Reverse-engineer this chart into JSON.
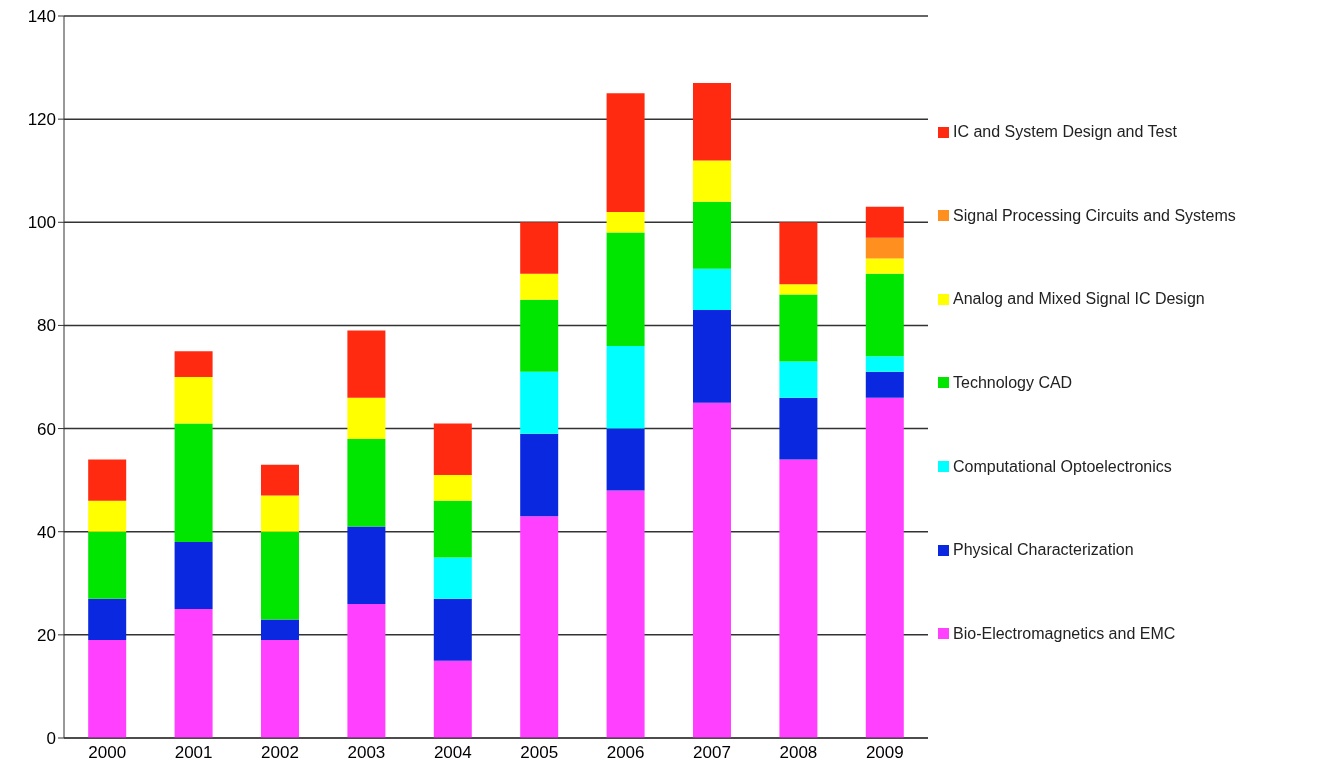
{
  "chart_data": {
    "type": "bar",
    "stacked": true,
    "categories": [
      "2000",
      "2001",
      "2002",
      "2003",
      "2004",
      "2005",
      "2006",
      "2007",
      "2008",
      "2009"
    ],
    "series": [
      {
        "name": "Bio-Electromagnetics and EMC",
        "color": "#ff40ff",
        "values": [
          19,
          25,
          19,
          26,
          15,
          43,
          48,
          65,
          54,
          66
        ]
      },
      {
        "name": "Physical Characterization",
        "color": "#0a28e0",
        "values": [
          8,
          13,
          4,
          15,
          12,
          16,
          12,
          18,
          12,
          5
        ]
      },
      {
        "name": "Computational Optoelectronics",
        "color": "#00ffff",
        "values": [
          0,
          0,
          0,
          0,
          8,
          12,
          16,
          8,
          7,
          3
        ]
      },
      {
        "name": "Technology CAD",
        "color": "#00e600",
        "values": [
          13,
          23,
          17,
          17,
          11,
          14,
          22,
          13,
          13,
          16
        ]
      },
      {
        "name": "Analog and Mixed Signal IC Design",
        "color": "#ffff00",
        "values": [
          6,
          9,
          7,
          8,
          5,
          5,
          4,
          8,
          2,
          3
        ]
      },
      {
        "name": "Signal Processing Circuits and Systems",
        "color": "#ff9020",
        "values": [
          0,
          0,
          0,
          0,
          0,
          0,
          0,
          0,
          0,
          4
        ]
      },
      {
        "name": "IC and System Design and Test",
        "color": "#ff2a10",
        "values": [
          8,
          5,
          6,
          13,
          10,
          10,
          23,
          15,
          12,
          6
        ]
      }
    ],
    "ylim": [
      0,
      140
    ],
    "yticks": [
      0,
      20,
      40,
      60,
      80,
      100,
      120,
      140
    ],
    "grid": "y",
    "legend": "right"
  }
}
